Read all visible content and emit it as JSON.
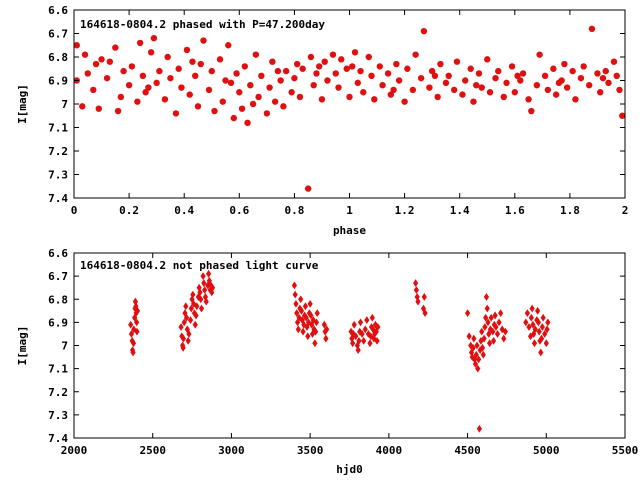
{
  "chart_data": [
    {
      "type": "scatter",
      "title": "164618-0804.2 phased with P=47.200day",
      "xlabel": "phase",
      "ylabel": "I[mag]",
      "xlim": [
        0,
        2
      ],
      "ylim": [
        7.4,
        6.6
      ],
      "y_inverted": true,
      "grid": false,
      "marker_color": "#e01010",
      "marker": "filled-circle-large",
      "xticks": [
        0,
        0.2,
        0.4,
        0.6,
        0.8,
        1,
        1.2,
        1.4,
        1.6,
        1.8,
        2
      ],
      "xtick_labels": [
        "0",
        "0.2",
        "0.4",
        "0.6",
        "0.8",
        "1",
        "1.2",
        "1.4",
        "1.6",
        "1.8",
        "2"
      ],
      "yticks": [
        6.6,
        6.7,
        6.8,
        6.9,
        7.0,
        7.1,
        7.2,
        7.3,
        7.4
      ],
      "ytick_labels": [
        "6.6",
        "6.7",
        "6.8",
        "6.9",
        "7",
        "7.1",
        "7.2",
        "7.3",
        "7.4"
      ],
      "points": [
        [
          0.01,
          6.75
        ],
        [
          0.01,
          6.9
        ],
        [
          0.03,
          7.01
        ],
        [
          0.04,
          6.79
        ],
        [
          0.05,
          6.87
        ],
        [
          0.07,
          6.94
        ],
        [
          0.08,
          6.83
        ],
        [
          0.1,
          6.81
        ],
        [
          0.12,
          6.89
        ],
        [
          0.13,
          6.82
        ],
        [
          0.15,
          6.76
        ],
        [
          0.16,
          7.03
        ],
        [
          0.17,
          6.97
        ],
        [
          0.18,
          6.86
        ],
        [
          0.2,
          6.92
        ],
        [
          0.21,
          6.84
        ],
        [
          0.23,
          6.99
        ],
        [
          0.24,
          6.74
        ],
        [
          0.25,
          6.88
        ],
        [
          0.26,
          6.95
        ],
        [
          0.28,
          6.78
        ],
        [
          0.29,
          6.72
        ],
        [
          0.3,
          6.91
        ],
        [
          0.31,
          6.86
        ],
        [
          0.33,
          6.98
        ],
        [
          0.34,
          6.8
        ],
        [
          0.35,
          6.89
        ],
        [
          0.37,
          7.04
        ],
        [
          0.38,
          6.85
        ],
        [
          0.39,
          6.93
        ],
        [
          0.41,
          6.77
        ],
        [
          0.42,
          6.96
        ],
        [
          0.44,
          6.88
        ],
        [
          0.45,
          7.01
        ],
        [
          0.46,
          6.83
        ],
        [
          0.47,
          6.73
        ],
        [
          0.49,
          6.94
        ],
        [
          0.5,
          6.86
        ],
        [
          0.51,
          7.03
        ],
        [
          0.53,
          6.81
        ],
        [
          0.54,
          6.99
        ],
        [
          0.55,
          6.9
        ],
        [
          0.56,
          6.75
        ],
        [
          0.58,
          7.06
        ],
        [
          0.59,
          6.87
        ],
        [
          0.6,
          6.95
        ],
        [
          0.61,
          7.02
        ],
        [
          0.62,
          6.84
        ],
        [
          0.63,
          7.08
        ],
        [
          0.64,
          6.92
        ],
        [
          0.65,
          7.0
        ],
        [
          0.66,
          6.79
        ],
        [
          0.67,
          6.97
        ],
        [
          0.68,
          6.88
        ],
        [
          0.7,
          7.04
        ],
        [
          0.71,
          6.93
        ],
        [
          0.72,
          6.82
        ],
        [
          0.73,
          6.99
        ],
        [
          0.75,
          6.9
        ],
        [
          0.76,
          7.01
        ],
        [
          0.77,
          6.86
        ],
        [
          0.79,
          6.95
        ],
        [
          0.8,
          6.89
        ],
        [
          0.81,
          6.83
        ],
        [
          0.82,
          6.97
        ],
        [
          0.83,
          6.85
        ],
        [
          0.85,
          7.36
        ],
        [
          0.86,
          6.8
        ],
        [
          0.87,
          6.92
        ],
        [
          0.89,
          6.84
        ],
        [
          0.9,
          6.98
        ],
        [
          0.91,
          6.82
        ],
        [
          0.92,
          6.9
        ],
        [
          0.94,
          6.79
        ],
        [
          0.95,
          6.87
        ],
        [
          0.96,
          6.93
        ],
        [
          0.97,
          6.81
        ],
        [
          0.99,
          6.85
        ],
        [
          1.0,
          6.97
        ],
        [
          1.01,
          6.84
        ],
        [
          1.03,
          6.91
        ],
        [
          1.04,
          6.86
        ],
        [
          1.05,
          6.95
        ],
        [
          1.07,
          6.8
        ],
        [
          1.08,
          6.88
        ],
        [
          1.09,
          6.98
        ],
        [
          1.11,
          6.84
        ],
        [
          1.12,
          6.92
        ],
        [
          1.14,
          6.87
        ],
        [
          1.15,
          6.96
        ],
        [
          1.17,
          6.83
        ],
        [
          1.18,
          6.9
        ],
        [
          1.2,
          6.99
        ],
        [
          1.21,
          6.85
        ],
        [
          1.23,
          6.94
        ],
        [
          1.24,
          6.79
        ],
        [
          1.26,
          6.89
        ],
        [
          1.27,
          6.69
        ],
        [
          1.29,
          6.93
        ],
        [
          1.3,
          6.86
        ],
        [
          1.32,
          6.97
        ],
        [
          1.33,
          6.83
        ],
        [
          1.35,
          6.91
        ],
        [
          1.36,
          6.88
        ],
        [
          1.38,
          6.94
        ],
        [
          1.39,
          6.82
        ],
        [
          1.41,
          6.96
        ],
        [
          1.42,
          6.9
        ],
        [
          1.44,
          6.85
        ],
        [
          1.45,
          6.99
        ],
        [
          1.47,
          6.87
        ],
        [
          1.48,
          6.93
        ],
        [
          1.5,
          6.81
        ],
        [
          1.51,
          6.95
        ],
        [
          1.53,
          6.89
        ],
        [
          1.54,
          6.86
        ],
        [
          1.56,
          6.97
        ],
        [
          1.57,
          6.91
        ],
        [
          1.59,
          6.84
        ],
        [
          1.6,
          6.95
        ],
        [
          1.62,
          6.9
        ],
        [
          1.63,
          6.87
        ],
        [
          1.65,
          6.98
        ],
        [
          1.66,
          7.03
        ],
        [
          1.68,
          6.92
        ],
        [
          1.69,
          6.79
        ],
        [
          1.71,
          6.88
        ],
        [
          1.72,
          6.94
        ],
        [
          1.74,
          6.85
        ],
        [
          1.75,
          6.96
        ],
        [
          1.77,
          6.9
        ],
        [
          1.78,
          6.83
        ],
        [
          1.79,
          6.93
        ],
        [
          1.81,
          6.86
        ],
        [
          1.82,
          6.98
        ],
        [
          1.84,
          6.89
        ],
        [
          1.85,
          6.84
        ],
        [
          1.87,
          6.92
        ],
        [
          1.88,
          6.68
        ],
        [
          1.9,
          6.87
        ],
        [
          1.91,
          6.95
        ],
        [
          1.93,
          6.86
        ],
        [
          1.94,
          6.91
        ],
        [
          1.96,
          6.82
        ],
        [
          1.97,
          6.88
        ],
        [
          1.98,
          6.94
        ],
        [
          1.99,
          7.05
        ],
        [
          0.09,
          7.02
        ],
        [
          0.27,
          6.93
        ],
        [
          0.43,
          6.82
        ],
        [
          0.57,
          6.91
        ],
        [
          0.74,
          6.86
        ],
        [
          0.88,
          6.87
        ],
        [
          1.02,
          6.78
        ],
        [
          1.16,
          6.94
        ],
        [
          1.31,
          6.88
        ],
        [
          1.46,
          6.92
        ],
        [
          1.61,
          6.88
        ],
        [
          1.76,
          6.91
        ],
        [
          1.92,
          6.89
        ]
      ]
    },
    {
      "type": "scatter",
      "title": "164618-0804.2 not phased light curve",
      "xlabel": "hjd0",
      "ylabel": "I[mag]",
      "xlim": [
        2000,
        5500
      ],
      "ylim": [
        7.4,
        6.6
      ],
      "y_inverted": true,
      "grid": false,
      "marker_color": "#e01010",
      "marker": "filled-diamond-small",
      "xticks": [
        2000,
        2500,
        3000,
        3500,
        4000,
        4500,
        5000,
        5500
      ],
      "xtick_labels": [
        "2000",
        "2500",
        "3000",
        "3500",
        "4000",
        "4500",
        "5000",
        "5500"
      ],
      "yticks": [
        6.6,
        6.7,
        6.8,
        6.9,
        7.0,
        7.1,
        7.2,
        7.3,
        7.4
      ],
      "ytick_labels": [
        "6.6",
        "6.7",
        "6.8",
        "6.9",
        "7",
        "7.1",
        "7.2",
        "7.3",
        "7.4"
      ],
      "points": [
        [
          2360,
          6.91
        ],
        [
          2365,
          6.95
        ],
        [
          2370,
          6.98
        ],
        [
          2372,
          7.02
        ],
        [
          2375,
          7.03
        ],
        [
          2378,
          6.99
        ],
        [
          2380,
          6.93
        ],
        [
          2385,
          6.88
        ],
        [
          2388,
          6.84
        ],
        [
          2390,
          6.81
        ],
        [
          2393,
          6.83
        ],
        [
          2395,
          6.86
        ],
        [
          2398,
          6.9
        ],
        [
          2400,
          6.94
        ],
        [
          2403,
          6.85
        ],
        [
          2680,
          6.92
        ],
        [
          2685,
          6.96
        ],
        [
          2690,
          7.0
        ],
        [
          2693,
          7.01
        ],
        [
          2695,
          6.97
        ],
        [
          2700,
          6.9
        ],
        [
          2705,
          6.86
        ],
        [
          2710,
          6.83
        ],
        [
          2715,
          6.88
        ],
        [
          2720,
          6.93
        ],
        [
          2725,
          6.98
        ],
        [
          2730,
          6.95
        ],
        [
          2740,
          6.89
        ],
        [
          2745,
          6.84
        ],
        [
          2750,
          6.8
        ],
        [
          2755,
          6.78
        ],
        [
          2760,
          6.82
        ],
        [
          2765,
          6.86
        ],
        [
          2770,
          6.91
        ],
        [
          2775,
          6.87
        ],
        [
          2780,
          6.83
        ],
        [
          2790,
          6.79
        ],
        [
          2795,
          6.75
        ],
        [
          2800,
          6.77
        ],
        [
          2805,
          6.8
        ],
        [
          2810,
          6.84
        ],
        [
          2820,
          6.7
        ],
        [
          2825,
          6.73
        ],
        [
          2830,
          6.76
        ],
        [
          2835,
          6.79
        ],
        [
          2840,
          6.81
        ],
        [
          2850,
          6.74
        ],
        [
          2855,
          6.69
        ],
        [
          2860,
          6.72
        ],
        [
          2865,
          6.76
        ],
        [
          2870,
          6.74
        ],
        [
          2875,
          6.77
        ],
        [
          2880,
          6.75
        ],
        [
          3400,
          6.74
        ],
        [
          3405,
          6.78
        ],
        [
          3410,
          6.82
        ],
        [
          3415,
          6.86
        ],
        [
          3420,
          6.9
        ],
        [
          3425,
          6.93
        ],
        [
          3430,
          6.88
        ],
        [
          3435,
          6.84
        ],
        [
          3440,
          6.8
        ],
        [
          3445,
          6.85
        ],
        [
          3450,
          6.89
        ],
        [
          3455,
          6.94
        ],
        [
          3460,
          6.91
        ],
        [
          3465,
          6.87
        ],
        [
          3470,
          6.83
        ],
        [
          3475,
          6.88
        ],
        [
          3480,
          6.92
        ],
        [
          3485,
          6.96
        ],
        [
          3490,
          6.9
        ],
        [
          3495,
          6.86
        ],
        [
          3500,
          6.82
        ],
        [
          3505,
          6.87
        ],
        [
          3510,
          6.91
        ],
        [
          3515,
          6.95
        ],
        [
          3520,
          6.89
        ],
        [
          3525,
          6.93
        ],
        [
          3530,
          6.99
        ],
        [
          3535,
          6.94
        ],
        [
          3540,
          6.9
        ],
        [
          3545,
          6.86
        ],
        [
          3590,
          6.91
        ],
        [
          3595,
          6.94
        ],
        [
          3600,
          6.97
        ],
        [
          3605,
          6.93
        ],
        [
          3760,
          6.94
        ],
        [
          3765,
          6.97
        ],
        [
          3770,
          6.99
        ],
        [
          3775,
          6.95
        ],
        [
          3780,
          6.91
        ],
        [
          3790,
          6.96
        ],
        [
          3800,
          7.0
        ],
        [
          3805,
          7.02
        ],
        [
          3810,
          6.98
        ],
        [
          3815,
          6.94
        ],
        [
          3820,
          6.9
        ],
        [
          3830,
          6.95
        ],
        [
          3840,
          6.98
        ],
        [
          3850,
          6.93
        ],
        [
          3860,
          6.89
        ],
        [
          3870,
          6.95
        ],
        [
          3880,
          6.99
        ],
        [
          3885,
          6.96
        ],
        [
          3890,
          6.92
        ],
        [
          3895,
          6.88
        ],
        [
          3900,
          6.93
        ],
        [
          3905,
          6.97
        ],
        [
          3910,
          6.95
        ],
        [
          3915,
          6.91
        ],
        [
          3920,
          6.94
        ],
        [
          3925,
          6.98
        ],
        [
          3930,
          6.92
        ],
        [
          4170,
          6.73
        ],
        [
          4175,
          6.76
        ],
        [
          4180,
          6.79
        ],
        [
          4185,
          6.81
        ],
        [
          4220,
          6.84
        ],
        [
          4225,
          6.79
        ],
        [
          4230,
          6.86
        ],
        [
          4500,
          6.86
        ],
        [
          4510,
          6.96
        ],
        [
          4520,
          7.0
        ],
        [
          4525,
          7.03
        ],
        [
          4530,
          7.05
        ],
        [
          4535,
          7.01
        ],
        [
          4540,
          6.97
        ],
        [
          4545,
          7.06
        ],
        [
          4550,
          7.08
        ],
        [
          4555,
          7.04
        ],
        [
          4560,
          7.0
        ],
        [
          4565,
          7.1
        ],
        [
          4570,
          7.06
        ],
        [
          4575,
          7.36
        ],
        [
          4580,
          7.02
        ],
        [
          4585,
          6.98
        ],
        [
          4590,
          6.94
        ],
        [
          4595,
          7.01
        ],
        [
          4600,
          7.04
        ],
        [
          4605,
          6.97
        ],
        [
          4610,
          6.92
        ],
        [
          4615,
          6.88
        ],
        [
          4620,
          6.79
        ],
        [
          4625,
          6.84
        ],
        [
          4630,
          6.9
        ],
        [
          4635,
          6.95
        ],
        [
          4640,
          6.99
        ],
        [
          4645,
          6.93
        ],
        [
          4650,
          6.88
        ],
        [
          4660,
          6.94
        ],
        [
          4665,
          6.98
        ],
        [
          4670,
          6.91
        ],
        [
          4675,
          6.87
        ],
        [
          4680,
          6.92
        ],
        [
          4690,
          6.95
        ],
        [
          4700,
          6.9
        ],
        [
          4710,
          6.86
        ],
        [
          4720,
          6.93
        ],
        [
          4730,
          6.97
        ],
        [
          4740,
          6.94
        ],
        [
          4870,
          6.9
        ],
        [
          4880,
          6.86
        ],
        [
          4890,
          6.92
        ],
        [
          4900,
          6.96
        ],
        [
          4905,
          6.88
        ],
        [
          4910,
          6.84
        ],
        [
          4915,
          6.91
        ],
        [
          4920,
          6.95
        ],
        [
          4925,
          6.99
        ],
        [
          4930,
          6.93
        ],
        [
          4940,
          6.89
        ],
        [
          4945,
          6.85
        ],
        [
          4950,
          6.9
        ],
        [
          4955,
          6.94
        ],
        [
          4960,
          6.98
        ],
        [
          4965,
          7.03
        ],
        [
          4970,
          6.97
        ],
        [
          4975,
          6.92
        ],
        [
          4980,
          6.88
        ],
        [
          4990,
          6.95
        ],
        [
          5000,
          6.99
        ],
        [
          5005,
          6.93
        ],
        [
          5010,
          6.9
        ]
      ]
    }
  ]
}
